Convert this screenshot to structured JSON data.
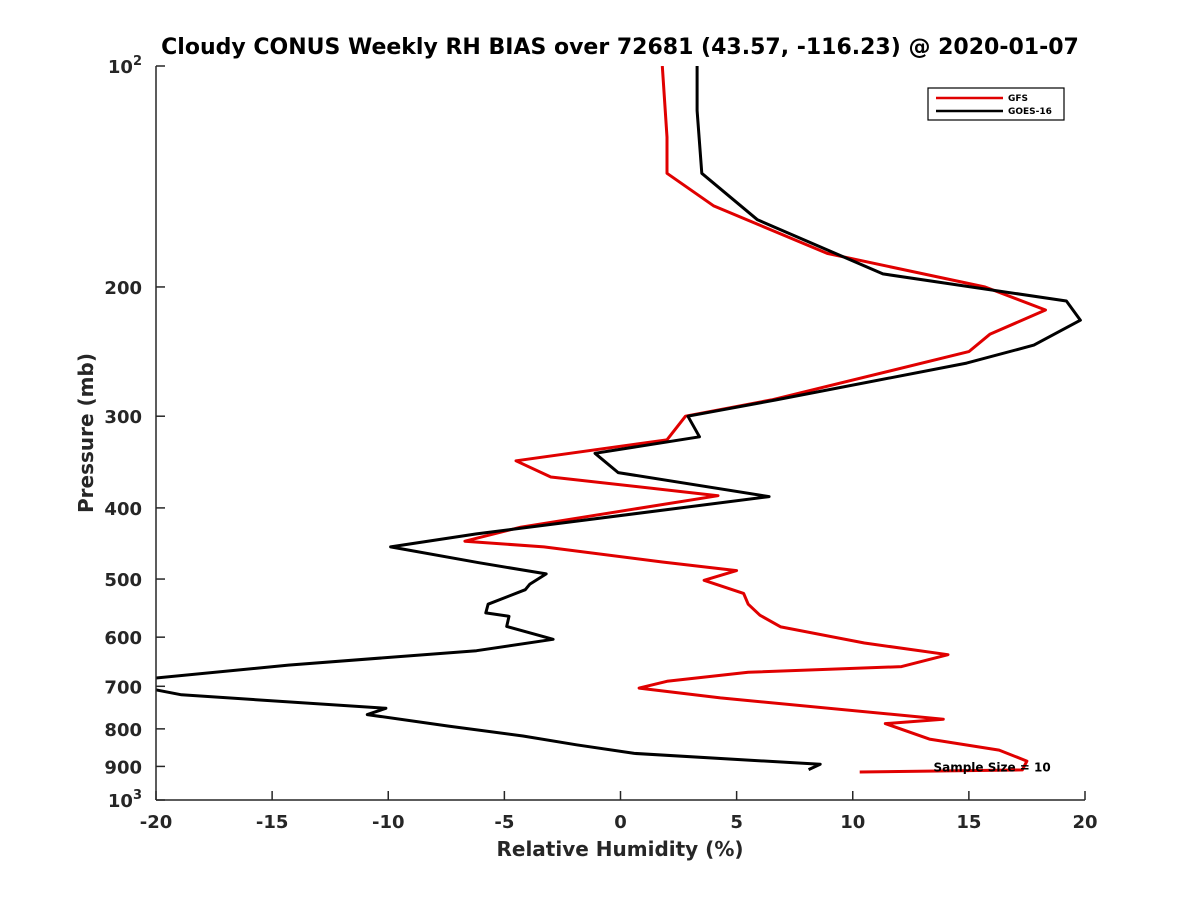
{
  "chart_data": {
    "type": "line",
    "title": "Cloudy CONUS Weekly RH BIAS over 72681 (43.57, -116.23) @ 2020-01-07",
    "xlabel": "Relative Humidity (%)",
    "ylabel": "Pressure (mb)",
    "xlim": [
      -20,
      20
    ],
    "ylim": [
      100,
      1000
    ],
    "y_scale": "log",
    "y_reversed": true,
    "grid": false,
    "legend_position": "top-right",
    "x_ticks": [
      "-20",
      "-15",
      "-10",
      "-5",
      "0",
      "5",
      "10",
      "15",
      "20"
    ],
    "y_ticks": [
      {
        "value": 100,
        "base": "10",
        "exp": "2"
      },
      {
        "value": 200,
        "label": "200"
      },
      {
        "value": 300,
        "label": "300"
      },
      {
        "value": 400,
        "label": "400"
      },
      {
        "value": 500,
        "label": "500"
      },
      {
        "value": 600,
        "label": "600"
      },
      {
        "value": 700,
        "label": "700"
      },
      {
        "value": 800,
        "label": "800"
      },
      {
        "value": 900,
        "label": "900"
      },
      {
        "value": 1000,
        "base": "10",
        "exp": "3"
      }
    ],
    "series": [
      {
        "name": "GFS",
        "color": "#e00000",
        "points": [
          [
            1.8,
            100
          ],
          [
            2.0,
            125
          ],
          [
            2.0,
            140
          ],
          [
            4.0,
            155
          ],
          [
            8.9,
            180
          ],
          [
            15.7,
            200
          ],
          [
            18.3,
            215
          ],
          [
            15.9,
            232
          ],
          [
            15.0,
            245
          ],
          [
            6.5,
            285
          ],
          [
            2.8,
            300
          ],
          [
            2.0,
            323
          ],
          [
            -4.5,
            345
          ],
          [
            -3.0,
            363
          ],
          [
            4.2,
            385
          ],
          [
            -4.3,
            425
          ],
          [
            -6.7,
            444
          ],
          [
            -3.3,
            452
          ],
          [
            1.8,
            474
          ],
          [
            5.0,
            487
          ],
          [
            3.6,
            502
          ],
          [
            5.3,
            523
          ],
          [
            5.5,
            541
          ],
          [
            6.0,
            560
          ],
          [
            6.9,
            581
          ],
          [
            10.5,
            611
          ],
          [
            14.1,
            634
          ],
          [
            12.1,
            658
          ],
          [
            5.5,
            670
          ],
          [
            2.0,
            689
          ],
          [
            0.8,
            704
          ],
          [
            4.3,
            726
          ],
          [
            13.9,
            776
          ],
          [
            11.4,
            787
          ],
          [
            13.3,
            826
          ],
          [
            16.3,
            855
          ],
          [
            17.5,
            885
          ],
          [
            17.3,
            910
          ],
          [
            10.3,
            916
          ]
        ]
      },
      {
        "name": "GOES-16",
        "color": "#000000",
        "points": [
          [
            3.3,
            100
          ],
          [
            3.3,
            115
          ],
          [
            3.5,
            140
          ],
          [
            5.9,
            162
          ],
          [
            11.3,
            192
          ],
          [
            19.2,
            209
          ],
          [
            19.8,
            222
          ],
          [
            17.8,
            240
          ],
          [
            14.9,
            254
          ],
          [
            6.7,
            285
          ],
          [
            2.9,
            300
          ],
          [
            3.4,
            320
          ],
          [
            -1.1,
            337
          ],
          [
            -0.1,
            358
          ],
          [
            6.4,
            386
          ],
          [
            -6.2,
            434
          ],
          [
            -9.9,
            452
          ],
          [
            -6.1,
            475
          ],
          [
            -3.2,
            492
          ],
          [
            -3.9,
            508
          ],
          [
            -4.1,
            517
          ],
          [
            -5.7,
            541
          ],
          [
            -5.8,
            556
          ],
          [
            -4.8,
            562
          ],
          [
            -4.9,
            580
          ],
          [
            -2.9,
            604
          ],
          [
            -6.2,
            626
          ],
          [
            -14.3,
            655
          ],
          [
            -20.4,
            684
          ],
          [
            -20.4,
            704
          ],
          [
            -18.9,
            719
          ],
          [
            -10.1,
            750
          ],
          [
            -10.9,
            765
          ],
          [
            -7.4,
            793
          ],
          [
            -4.2,
            818
          ],
          [
            -1.9,
            841
          ],
          [
            0.6,
            864
          ],
          [
            8.6,
            894
          ],
          [
            8.1,
            909
          ]
        ]
      }
    ],
    "annotations": [
      {
        "text": "Sample Size = 10",
        "x": 16.0,
        "y": 900
      }
    ]
  }
}
